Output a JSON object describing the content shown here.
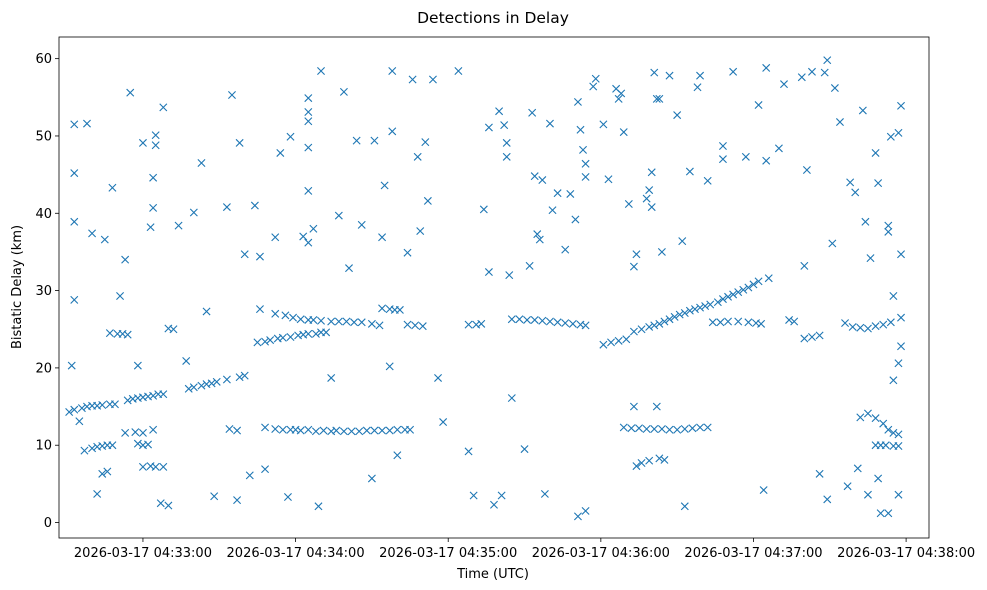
{
  "chart_data": {
    "type": "scatter",
    "title": "Detections in Delay",
    "xlabel": "Time (UTC)",
    "ylabel": "Bistatic Delay (km)",
    "marker": "x",
    "color": "#1f77b4",
    "grid": false,
    "x_ticks": [
      "2026-03-17 04:33:00",
      "2026-03-17 04:34:00",
      "2026-03-17 04:35:00",
      "2026-03-17 04:36:00",
      "2026-03-17 04:37:00",
      "2026-03-17 04:38:00"
    ],
    "xlim": [
      "2026-03-17 04:32:27",
      "2026-03-17 04:38:09"
    ],
    "y_ticks": [
      0,
      10,
      20,
      30,
      40,
      50,
      60
    ],
    "ylim": [
      -2,
      62.8
    ],
    "points": [
      [
        "04:32:31",
        14.3
      ],
      [
        "04:32:33",
        14.6
      ],
      [
        "04:32:36",
        14.8
      ],
      [
        "04:32:38",
        15.0
      ],
      [
        "04:32:40",
        15.1
      ],
      [
        "04:32:42",
        15.1
      ],
      [
        "04:32:44",
        15.2
      ],
      [
        "04:32:47",
        15.3
      ],
      [
        "04:32:49",
        15.3
      ],
      [
        "04:32:54",
        15.8
      ],
      [
        "04:32:56",
        16.0
      ],
      [
        "04:32:58",
        16.1
      ],
      [
        "04:33:00",
        16.2
      ],
      [
        "04:33:02",
        16.3
      ],
      [
        "04:33:04",
        16.4
      ],
      [
        "04:33:06",
        16.6
      ],
      [
        "04:33:08",
        16.6
      ],
      [
        "04:33:18",
        17.3
      ],
      [
        "04:33:20",
        17.5
      ],
      [
        "04:33:23",
        17.7
      ],
      [
        "04:33:25",
        17.9
      ],
      [
        "04:33:27",
        18.0
      ],
      [
        "04:33:29",
        18.2
      ],
      [
        "04:33:33",
        18.5
      ],
      [
        "04:33:38",
        18.8
      ],
      [
        "04:33:40",
        19.0
      ],
      [
        "04:33:45",
        23.3
      ],
      [
        "04:33:48",
        23.4
      ],
      [
        "04:33:50",
        23.6
      ],
      [
        "04:33:53",
        23.8
      ],
      [
        "04:33:55",
        23.9
      ],
      [
        "04:33:58",
        24.0
      ],
      [
        "04:34:01",
        24.2
      ],
      [
        "04:34:03",
        24.3
      ],
      [
        "04:34:05",
        24.4
      ],
      [
        "04:34:08",
        24.4
      ],
      [
        "04:34:10",
        24.6
      ],
      [
        "04:34:12",
        24.6
      ],
      [
        "04:33:46",
        27.6
      ],
      [
        "04:33:52",
        27.0
      ],
      [
        "04:33:56",
        26.8
      ],
      [
        "04:33:59",
        26.5
      ],
      [
        "04:34:02",
        26.3
      ],
      [
        "04:34:05",
        26.2
      ],
      [
        "04:34:07",
        26.2
      ],
      [
        "04:34:10",
        26.1
      ],
      [
        "04:34:14",
        26.0
      ],
      [
        "04:34:17",
        26.0
      ],
      [
        "04:34:20",
        26.0
      ],
      [
        "04:34:23",
        25.9
      ],
      [
        "04:34:26",
        25.9
      ],
      [
        "04:34:30",
        25.7
      ],
      [
        "04:34:33",
        25.5
      ],
      [
        "04:34:34",
        27.7
      ],
      [
        "04:34:37",
        27.6
      ],
      [
        "04:34:39",
        27.5
      ],
      [
        "04:34:41",
        27.5
      ],
      [
        "04:34:44",
        25.6
      ],
      [
        "04:34:47",
        25.5
      ],
      [
        "04:34:50",
        25.4
      ],
      [
        "04:35:08",
        25.6
      ],
      [
        "04:35:11",
        25.6
      ],
      [
        "04:35:13",
        25.7
      ],
      [
        "04:35:25",
        26.3
      ],
      [
        "04:35:28",
        26.3
      ],
      [
        "04:35:31",
        26.2
      ],
      [
        "04:35:34",
        26.2
      ],
      [
        "04:35:37",
        26.1
      ],
      [
        "04:35:40",
        26.0
      ],
      [
        "04:35:43",
        25.9
      ],
      [
        "04:35:46",
        25.8
      ],
      [
        "04:35:49",
        25.7
      ],
      [
        "04:35:52",
        25.6
      ],
      [
        "04:35:54",
        25.5
      ],
      [
        "04:36:01",
        23.0
      ],
      [
        "04:36:04",
        23.3
      ],
      [
        "04:36:07",
        23.5
      ],
      [
        "04:36:10",
        23.7
      ],
      [
        "04:36:13",
        24.7
      ],
      [
        "04:36:16",
        25.0
      ],
      [
        "04:36:19",
        25.3
      ],
      [
        "04:36:21",
        25.5
      ],
      [
        "04:36:23",
        25.7
      ],
      [
        "04:36:25",
        26.0
      ],
      [
        "04:36:27",
        26.3
      ],
      [
        "04:36:29",
        26.6
      ],
      [
        "04:36:31",
        26.9
      ],
      [
        "04:36:33",
        27.1
      ],
      [
        "04:36:35",
        27.4
      ],
      [
        "04:36:37",
        27.6
      ],
      [
        "04:36:39",
        27.8
      ],
      [
        "04:36:41",
        28.0
      ],
      [
        "04:36:43",
        28.2
      ],
      [
        "04:36:46",
        28.5
      ],
      [
        "04:36:48",
        28.9
      ],
      [
        "04:36:50",
        29.2
      ],
      [
        "04:36:52",
        29.5
      ],
      [
        "04:36:54",
        29.8
      ],
      [
        "04:36:56",
        30.1
      ],
      [
        "04:36:58",
        30.4
      ],
      [
        "04:37:00",
        30.8
      ],
      [
        "04:37:02",
        31.2
      ],
      [
        "04:37:06",
        31.6
      ],
      [
        "04:36:44",
        25.9
      ],
      [
        "04:36:47",
        25.9
      ],
      [
        "04:36:50",
        26.0
      ],
      [
        "04:36:54",
        26.0
      ],
      [
        "04:36:58",
        25.9
      ],
      [
        "04:37:01",
        25.8
      ],
      [
        "04:37:03",
        25.7
      ],
      [
        "04:37:14",
        26.2
      ],
      [
        "04:37:16",
        26.0
      ],
      [
        "04:37:20",
        23.8
      ],
      [
        "04:37:23",
        24.0
      ],
      [
        "04:37:26",
        24.2
      ],
      [
        "04:37:36",
        25.8
      ],
      [
        "04:37:39",
        25.3
      ],
      [
        "04:37:42",
        25.2
      ],
      [
        "04:37:45",
        25.1
      ],
      [
        "04:37:48",
        25.4
      ],
      [
        "04:37:51",
        25.6
      ],
      [
        "04:37:54",
        25.9
      ],
      [
        "04:37:58",
        26.5
      ],
      [
        "04:32:37",
        9.3
      ],
      [
        "04:32:40",
        9.6
      ],
      [
        "04:32:42",
        9.8
      ],
      [
        "04:32:44",
        9.9
      ],
      [
        "04:32:46",
        10.0
      ],
      [
        "04:32:48",
        10.0
      ],
      [
        "04:32:47",
        24.5
      ],
      [
        "04:32:50",
        24.4
      ],
      [
        "04:32:52",
        24.4
      ],
      [
        "04:32:54",
        24.3
      ],
      [
        "04:33:00",
        7.2
      ],
      [
        "04:33:03",
        7.3
      ],
      [
        "04:33:05",
        7.2
      ],
      [
        "04:33:08",
        7.2
      ],
      [
        "04:32:58",
        10.2
      ],
      [
        "04:33:00",
        10.0
      ],
      [
        "04:33:02",
        10.1
      ],
      [
        "04:32:57",
        11.7
      ],
      [
        "04:33:00",
        11.6
      ],
      [
        "04:33:04",
        12.0
      ],
      [
        "04:32:53",
        11.6
      ],
      [
        "04:33:34",
        12.1
      ],
      [
        "04:33:37",
        11.9
      ],
      [
        "04:33:48",
        12.3
      ],
      [
        "04:33:52",
        12.1
      ],
      [
        "04:33:55",
        12.0
      ],
      [
        "04:33:58",
        12.0
      ],
      [
        "04:34:00",
        12.0
      ],
      [
        "04:34:02",
        11.9
      ],
      [
        "04:34:05",
        12.0
      ],
      [
        "04:34:08",
        11.8
      ],
      [
        "04:34:11",
        11.9
      ],
      [
        "04:34:14",
        11.8
      ],
      [
        "04:34:16",
        11.9
      ],
      [
        "04:34:19",
        11.8
      ],
      [
        "04:34:22",
        11.8
      ],
      [
        "04:34:25",
        11.8
      ],
      [
        "04:34:28",
        11.9
      ],
      [
        "04:34:31",
        11.9
      ],
      [
        "04:34:34",
        11.9
      ],
      [
        "04:34:37",
        11.9
      ],
      [
        "04:34:40",
        12.0
      ],
      [
        "04:34:43",
        12.0
      ],
      [
        "04:34:45",
        12.0
      ],
      [
        "04:36:09",
        12.3
      ],
      [
        "04:36:12",
        12.2
      ],
      [
        "04:36:15",
        12.2
      ],
      [
        "04:36:18",
        12.1
      ],
      [
        "04:36:21",
        12.1
      ],
      [
        "04:36:24",
        12.1
      ],
      [
        "04:36:27",
        12.0
      ],
      [
        "04:36:30",
        12.0
      ],
      [
        "04:36:33",
        12.1
      ],
      [
        "04:36:36",
        12.2
      ],
      [
        "04:36:39",
        12.3
      ],
      [
        "04:36:42",
        12.3
      ],
      [
        "04:36:13",
        15.0
      ],
      [
        "04:36:22",
        15.0
      ],
      [
        "04:36:14",
        7.3
      ],
      [
        "04:36:16",
        7.7
      ],
      [
        "04:36:19",
        8.0
      ],
      [
        "04:36:23",
        8.3
      ],
      [
        "04:36:25",
        8.1
      ],
      [
        "04:37:42",
        13.6
      ],
      [
        "04:37:45",
        14.1
      ],
      [
        "04:37:48",
        13.5
      ],
      [
        "04:37:51",
        12.8
      ],
      [
        "04:37:53",
        12.0
      ],
      [
        "04:37:55",
        11.6
      ],
      [
        "04:37:57",
        11.4
      ],
      [
        "04:37:48",
        10.0
      ],
      [
        "04:37:50",
        10.0
      ],
      [
        "04:37:52",
        10.0
      ],
      [
        "04:37:55",
        9.9
      ],
      [
        "04:37:57",
        9.9
      ],
      [
        "04:32:33",
        51.5
      ],
      [
        "04:32:38",
        51.6
      ],
      [
        "04:32:33",
        45.2
      ],
      [
        "04:32:33",
        38.9
      ],
      [
        "04:32:32",
        20.3
      ],
      [
        "04:32:33",
        28.8
      ],
      [
        "04:32:35",
        13.1
      ],
      [
        "04:32:40",
        37.4
      ],
      [
        "04:32:45",
        36.6
      ],
      [
        "04:32:42",
        3.7
      ],
      [
        "04:32:44",
        6.3
      ],
      [
        "04:32:46",
        6.6
      ],
      [
        "04:32:48",
        43.3
      ],
      [
        "04:32:51",
        29.3
      ],
      [
        "04:32:53",
        34.0
      ],
      [
        "04:32:55",
        55.6
      ],
      [
        "04:32:58",
        20.3
      ],
      [
        "04:33:00",
        49.1
      ],
      [
        "04:33:03",
        38.2
      ],
      [
        "04:33:05",
        50.1
      ],
      [
        "04:33:04",
        44.6
      ],
      [
        "04:33:04",
        40.7
      ],
      [
        "04:33:05",
        48.8
      ],
      [
        "04:33:07",
        2.5
      ],
      [
        "04:33:10",
        2.2
      ],
      [
        "04:33:08",
        53.7
      ],
      [
        "04:33:10",
        25.1
      ],
      [
        "04:33:12",
        25.0
      ],
      [
        "04:33:14",
        38.4
      ],
      [
        "04:33:17",
        20.9
      ],
      [
        "04:33:20",
        40.1
      ],
      [
        "04:33:23",
        46.5
      ],
      [
        "04:33:25",
        27.3
      ],
      [
        "04:33:28",
        3.4
      ],
      [
        "04:33:33",
        40.8
      ],
      [
        "04:33:35",
        55.3
      ],
      [
        "04:33:37",
        2.9
      ],
      [
        "04:33:38",
        49.1
      ],
      [
        "04:33:40",
        34.7
      ],
      [
        "04:33:42",
        6.1
      ],
      [
        "04:33:44",
        41.0
      ],
      [
        "04:33:46",
        34.4
      ],
      [
        "04:33:48",
        6.9
      ],
      [
        "04:33:52",
        36.9
      ],
      [
        "04:33:54",
        47.8
      ],
      [
        "04:33:57",
        3.3
      ],
      [
        "04:33:58",
        49.9
      ],
      [
        "04:34:03",
        37.0
      ],
      [
        "04:34:05",
        36.2
      ],
      [
        "04:34:05",
        42.9
      ],
      [
        "04:34:05",
        53.1
      ],
      [
        "04:34:05",
        54.9
      ],
      [
        "04:34:05",
        51.9
      ],
      [
        "04:34:05",
        48.5
      ],
      [
        "04:34:07",
        38.0
      ],
      [
        "04:34:09",
        2.1
      ],
      [
        "04:34:10",
        58.4
      ],
      [
        "04:34:14",
        18.7
      ],
      [
        "04:34:17",
        39.7
      ],
      [
        "04:34:19",
        55.7
      ],
      [
        "04:34:21",
        32.9
      ],
      [
        "04:34:24",
        49.4
      ],
      [
        "04:34:26",
        38.5
      ],
      [
        "04:34:30",
        5.7
      ],
      [
        "04:34:31",
        49.4
      ],
      [
        "04:34:34",
        36.9
      ],
      [
        "04:34:35",
        43.6
      ],
      [
        "04:34:37",
        20.2
      ],
      [
        "04:34:38",
        58.4
      ],
      [
        "04:34:38",
        50.6
      ],
      [
        "04:34:40",
        8.7
      ],
      [
        "04:34:44",
        34.9
      ],
      [
        "04:34:46",
        57.3
      ],
      [
        "04:34:48",
        47.3
      ],
      [
        "04:34:49",
        37.7
      ],
      [
        "04:34:51",
        49.2
      ],
      [
        "04:34:52",
        41.6
      ],
      [
        "04:34:54",
        57.3
      ],
      [
        "04:34:56",
        18.7
      ],
      [
        "04:34:58",
        13.0
      ],
      [
        "04:35:04",
        58.4
      ],
      [
        "04:35:08",
        9.2
      ],
      [
        "04:35:10",
        3.5
      ],
      [
        "04:35:14",
        40.5
      ],
      [
        "04:35:16",
        32.4
      ],
      [
        "04:35:16",
        51.1
      ],
      [
        "04:35:18",
        2.3
      ],
      [
        "04:35:20",
        53.2
      ],
      [
        "04:35:21",
        3.5
      ],
      [
        "04:35:22",
        51.4
      ],
      [
        "04:35:23",
        49.1
      ],
      [
        "04:35:23",
        47.3
      ],
      [
        "04:35:24",
        32.0
      ],
      [
        "04:35:25",
        16.1
      ],
      [
        "04:35:30",
        9.5
      ],
      [
        "04:35:32",
        33.2
      ],
      [
        "04:35:33",
        53.0
      ],
      [
        "04:35:34",
        44.8
      ],
      [
        "04:35:35",
        37.3
      ],
      [
        "04:35:36",
        36.6
      ],
      [
        "04:35:37",
        44.3
      ],
      [
        "04:35:38",
        3.7
      ],
      [
        "04:35:40",
        51.6
      ],
      [
        "04:35:41",
        40.4
      ],
      [
        "04:35:43",
        42.6
      ],
      [
        "04:35:46",
        35.3
      ],
      [
        "04:35:48",
        42.5
      ],
      [
        "04:35:50",
        39.2
      ],
      [
        "04:35:51",
        54.4
      ],
      [
        "04:35:52",
        50.8
      ],
      [
        "04:35:53",
        48.2
      ],
      [
        "04:35:54",
        46.4
      ],
      [
        "04:35:54",
        44.7
      ],
      [
        "04:35:51",
        0.8
      ],
      [
        "04:35:54",
        1.5
      ],
      [
        "04:35:57",
        56.4
      ],
      [
        "04:35:58",
        57.4
      ],
      [
        "04:36:01",
        51.5
      ],
      [
        "04:36:03",
        44.4
      ],
      [
        "04:36:06",
        56.1
      ],
      [
        "04:36:07",
        54.8
      ],
      [
        "04:36:08",
        55.5
      ],
      [
        "04:36:09",
        50.5
      ],
      [
        "04:36:11",
        41.2
      ],
      [
        "04:36:13",
        33.1
      ],
      [
        "04:36:14",
        34.7
      ],
      [
        "04:36:18",
        41.9
      ],
      [
        "04:36:19",
        43.0
      ],
      [
        "04:36:20",
        40.8
      ],
      [
        "04:36:20",
        45.3
      ],
      [
        "04:36:21",
        58.2
      ],
      [
        "04:36:22",
        54.8
      ],
      [
        "04:36:23",
        54.8
      ],
      [
        "04:36:24",
        35.0
      ],
      [
        "04:36:27",
        57.8
      ],
      [
        "04:36:30",
        52.7
      ],
      [
        "04:36:32",
        36.4
      ],
      [
        "04:36:33",
        2.1
      ],
      [
        "04:36:35",
        45.4
      ],
      [
        "04:36:38",
        56.3
      ],
      [
        "04:36:39",
        57.8
      ],
      [
        "04:36:42",
        44.2
      ],
      [
        "04:36:48",
        48.7
      ],
      [
        "04:36:48",
        47.0
      ],
      [
        "04:36:52",
        58.3
      ],
      [
        "04:36:57",
        47.3
      ],
      [
        "04:37:02",
        54.0
      ],
      [
        "04:37:04",
        4.2
      ],
      [
        "04:37:05",
        46.8
      ],
      [
        "04:37:05",
        58.8
      ],
      [
        "04:37:10",
        48.4
      ],
      [
        "04:37:12",
        56.7
      ],
      [
        "04:37:19",
        57.6
      ],
      [
        "04:37:20",
        33.2
      ],
      [
        "04:37:21",
        45.6
      ],
      [
        "04:37:23",
        58.3
      ],
      [
        "04:37:26",
        6.3
      ],
      [
        "04:37:28",
        58.2
      ],
      [
        "04:37:29",
        59.8
      ],
      [
        "04:37:29",
        3.0
      ],
      [
        "04:37:31",
        36.1
      ],
      [
        "04:37:32",
        56.2
      ],
      [
        "04:37:34",
        51.8
      ],
      [
        "04:37:37",
        4.7
      ],
      [
        "04:37:38",
        44.0
      ],
      [
        "04:37:40",
        42.7
      ],
      [
        "04:37:41",
        7.0
      ],
      [
        "04:37:43",
        53.3
      ],
      [
        "04:37:44",
        38.9
      ],
      [
        "04:37:45",
        3.6
      ],
      [
        "04:37:46",
        34.2
      ],
      [
        "04:37:48",
        47.8
      ],
      [
        "04:37:49",
        43.9
      ],
      [
        "04:37:49",
        5.7
      ],
      [
        "04:37:50",
        1.2
      ],
      [
        "04:37:53",
        1.2
      ],
      [
        "04:37:53",
        38.4
      ],
      [
        "04:37:53",
        37.6
      ],
      [
        "04:37:54",
        49.9
      ],
      [
        "04:37:57",
        3.6
      ],
      [
        "04:37:57",
        50.4
      ],
      [
        "04:37:58",
        53.9
      ],
      [
        "04:37:58",
        34.7
      ],
      [
        "04:37:58",
        22.8
      ],
      [
        "04:37:57",
        20.6
      ],
      [
        "04:37:55",
        18.4
      ],
      [
        "04:37:55",
        29.3
      ]
    ]
  }
}
